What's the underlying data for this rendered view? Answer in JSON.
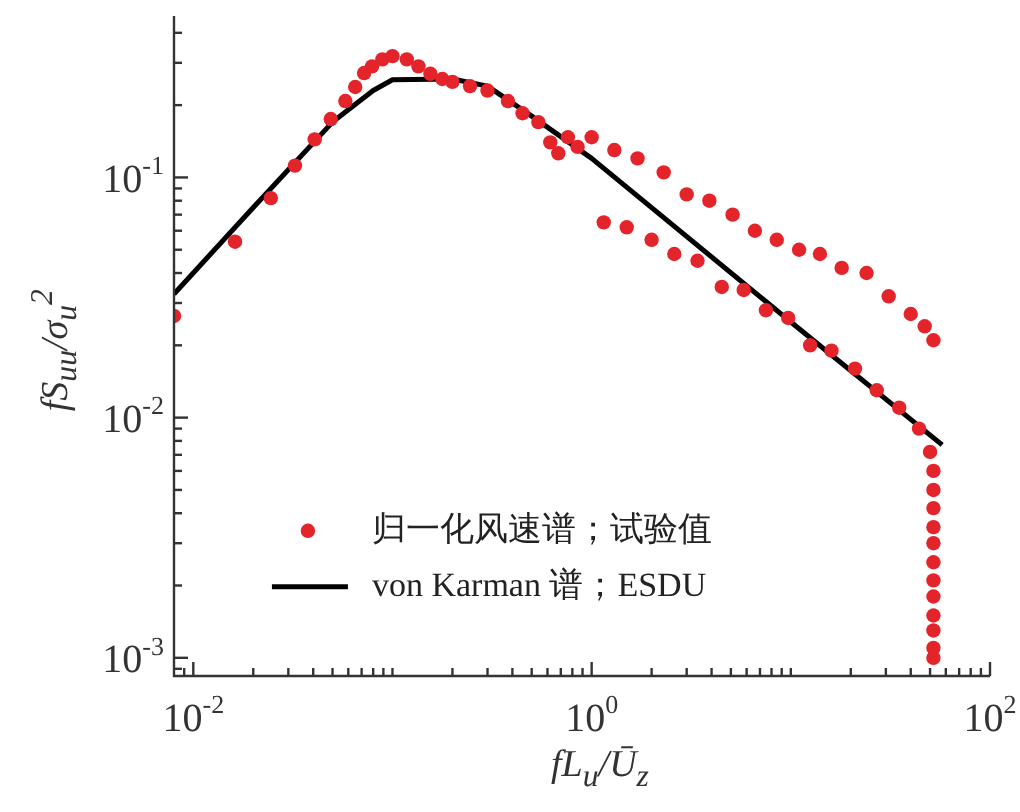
{
  "chart_data": {
    "type": "scatter",
    "xlabel": "fL$_{u}$/Ū$_{z}$",
    "ylabel": "fS$_{uu}$/σ$_{u}$$^{2}$",
    "log": "xy",
    "legend": "bottom",
    "grid": false,
    "xlim": [
      0.008,
      100
    ],
    "ylim": [
      0.00084,
      0.47
    ],
    "xticks": [
      {
        "value": 0.009,
        "label": null
      },
      {
        "value": 0.01,
        "label": "10$^{-2}$"
      },
      {
        "value": 0.02,
        "label": null
      },
      {
        "value": 0.03,
        "label": null
      },
      {
        "value": 0.04,
        "label": null
      },
      {
        "value": 0.05,
        "label": null
      },
      {
        "value": 0.06,
        "label": null
      },
      {
        "value": 0.07,
        "label": null
      },
      {
        "value": 0.08,
        "label": null
      },
      {
        "value": 0.09,
        "label": null
      },
      {
        "value": 0.1,
        "label": null
      },
      {
        "value": 0.2,
        "label": null
      },
      {
        "value": 0.3,
        "label": null
      },
      {
        "value": 0.4,
        "label": null
      },
      {
        "value": 0.5,
        "label": null
      },
      {
        "value": 0.6,
        "label": null
      },
      {
        "value": 0.7,
        "label": null
      },
      {
        "value": 0.8,
        "label": null
      },
      {
        "value": 0.9,
        "label": null
      },
      {
        "value": 1,
        "label": "10$^{0}$"
      },
      {
        "value": 2,
        "label": null
      },
      {
        "value": 3,
        "label": null
      },
      {
        "value": 4,
        "label": null
      },
      {
        "value": 5,
        "label": null
      },
      {
        "value": 6,
        "label": null
      },
      {
        "value": 7,
        "label": null
      },
      {
        "value": 8,
        "label": null
      },
      {
        "value": 9,
        "label": null
      },
      {
        "value": 10,
        "label": null
      },
      {
        "value": 20,
        "label": null
      },
      {
        "value": 30,
        "label": null
      },
      {
        "value": 40,
        "label": null
      },
      {
        "value": 50,
        "label": null
      },
      {
        "value": 60,
        "label": null
      },
      {
        "value": 70,
        "label": null
      },
      {
        "value": 80,
        "label": null
      },
      {
        "value": 90,
        "label": null
      },
      {
        "value": 100,
        "label": "10$^{2}$"
      }
    ],
    "yticks": [
      {
        "value": 0.0009,
        "label": null
      },
      {
        "value": 0.001,
        "label": "10$^{-3}$"
      },
      {
        "value": 0.002,
        "label": null
      },
      {
        "value": 0.003,
        "label": null
      },
      {
        "value": 0.004,
        "label": null
      },
      {
        "value": 0.005,
        "label": null
      },
      {
        "value": 0.006,
        "label": null
      },
      {
        "value": 0.007,
        "label": null
      },
      {
        "value": 0.008,
        "label": null
      },
      {
        "value": 0.009,
        "label": null
      },
      {
        "value": 0.01,
        "label": "10$^{-2}$"
      },
      {
        "value": 0.02,
        "label": null
      },
      {
        "value": 0.03,
        "label": null
      },
      {
        "value": 0.04,
        "label": null
      },
      {
        "value": 0.05,
        "label": null
      },
      {
        "value": 0.06,
        "label": null
      },
      {
        "value": 0.07,
        "label": null
      },
      {
        "value": 0.08,
        "label": null
      },
      {
        "value": 0.09,
        "label": null
      },
      {
        "value": 0.1,
        "label": "10$^{-1}$"
      },
      {
        "value": 0.2,
        "label": null
      },
      {
        "value": 0.3,
        "label": null
      },
      {
        "value": 0.4,
        "label": null
      }
    ],
    "series": [
      {
        "name": "归一化风速谱；试验值",
        "marker": "circle",
        "color": "#e3242b",
        "x": [
          0.008,
          0.0162,
          0.0245,
          0.0324,
          0.0407,
          0.049,
          0.058,
          0.065,
          0.072,
          0.079,
          0.089,
          0.1,
          0.118,
          0.135,
          0.155,
          0.178,
          0.2,
          0.245,
          0.3,
          0.38,
          0.45,
          0.54,
          0.62,
          0.68,
          0.76,
          0.85,
          1.0,
          1.15,
          1.3,
          1.5,
          1.7,
          2.0,
          2.3,
          2.6,
          3.0,
          3.4,
          3.9,
          4.5,
          5.1,
          5.8,
          6.6,
          7.5,
          8.5,
          9.7,
          11,
          12.5,
          14,
          16,
          18,
          21,
          24,
          27,
          31,
          35,
          40,
          44,
          47,
          50,
          52,
          52,
          52,
          52,
          52,
          52,
          52,
          52,
          52,
          52,
          52,
          52,
          52
        ],
        "values": [
          0.0265,
          0.054,
          0.082,
          0.112,
          0.144,
          0.175,
          0.208,
          0.238,
          0.272,
          0.29,
          0.31,
          0.32,
          0.31,
          0.29,
          0.27,
          0.257,
          0.25,
          0.24,
          0.23,
          0.208,
          0.185,
          0.17,
          0.14,
          0.126,
          0.147,
          0.134,
          0.147,
          0.065,
          0.13,
          0.062,
          0.12,
          0.055,
          0.105,
          0.048,
          0.085,
          0.045,
          0.08,
          0.035,
          0.07,
          0.034,
          0.06,
          0.028,
          0.055,
          0.026,
          0.05,
          0.02,
          0.048,
          0.019,
          0.042,
          0.016,
          0.04,
          0.013,
          0.032,
          0.011,
          0.027,
          0.009,
          0.024,
          0.0072,
          0.021,
          0.006,
          0.005,
          0.0042,
          0.0035,
          0.003,
          0.0025,
          0.0021,
          0.0018,
          0.0015,
          0.0013,
          0.0011,
          0.001
        ]
      },
      {
        "name": "von Karman 谱；ESDU",
        "type": "line",
        "marker": "none",
        "line_style": "solid",
        "color": "#000000",
        "x": [
          0.008,
          0.02,
          0.05,
          0.08,
          0.1,
          0.2,
          0.3,
          0.5,
          1,
          10,
          57.5
        ],
        "values": [
          0.0327,
          0.075,
          0.17,
          0.23,
          0.255,
          0.257,
          0.24,
          0.18,
          0.12,
          0.025,
          0.0077
        ]
      }
    ]
  }
}
